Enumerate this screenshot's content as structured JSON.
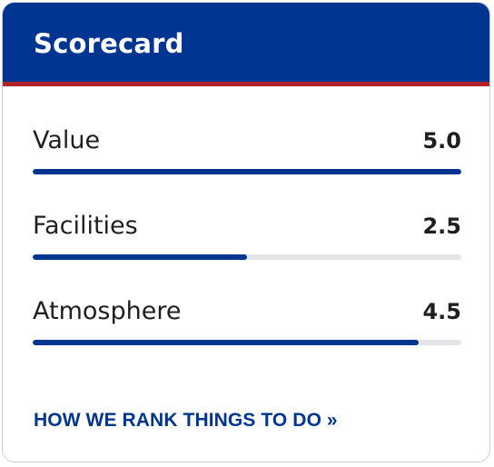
{
  "card": {
    "title": "Scorecard",
    "colors": {
      "header": "#003591",
      "header_border": "#b2202a",
      "bar_fill": "#003591",
      "bar_track": "#e3e5e9",
      "link": "#003591"
    },
    "max_score": 5.0,
    "rows": [
      {
        "label": "Value",
        "score_text": "5.0",
        "score": 5.0
      },
      {
        "label": "Facilities",
        "score_text": "2.5",
        "score": 2.5
      },
      {
        "label": "Atmosphere",
        "score_text": "4.5",
        "score": 4.5
      }
    ],
    "link_label": "HOW WE RANK THINGS TO DO »"
  }
}
